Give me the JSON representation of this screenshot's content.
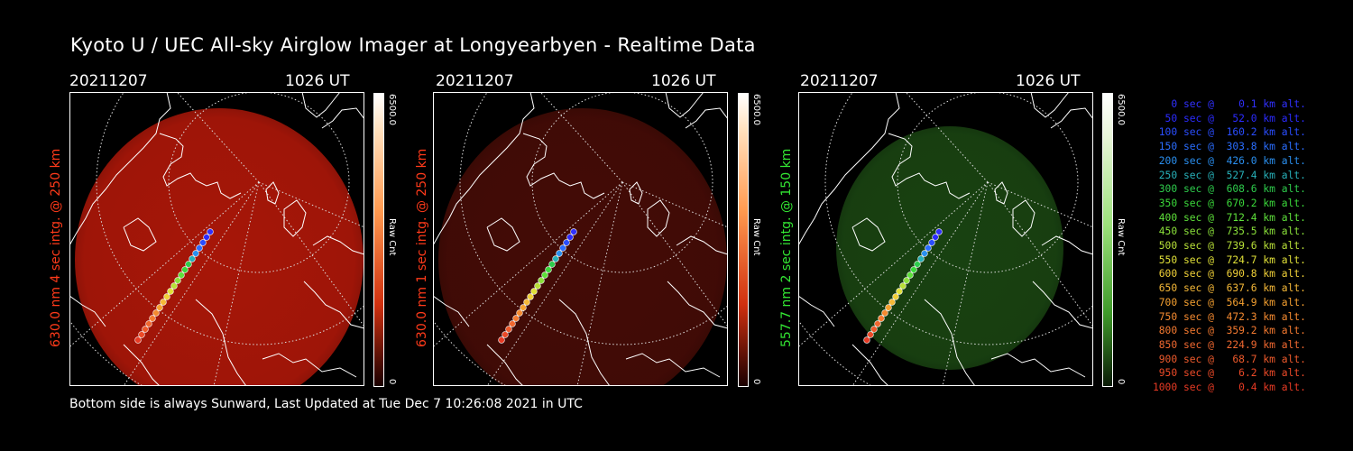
{
  "title": "Kyoto U / UEC All-sky Airglow Imager at Longyearbyen - Realtime Data",
  "footer": "Bottom side is always Sunward, Last Updated at Tue Dec  7 10:26:08 2021 in UTC",
  "panels": [
    {
      "date": "20211207",
      "time": "1026 UT",
      "label": "630.0 nm 4 sec intg. @ 250 km",
      "label_color": "#ff3a1a",
      "cbar_max": "6500.0",
      "cbar_min": "0",
      "cbar_unit": "Raw Cnt",
      "image_color": "#c41a0a",
      "image_opacity": 0.85,
      "colormap": "red"
    },
    {
      "date": "20211207",
      "time": "1026 UT",
      "label": "630.0 nm 1 sec intg. @ 250 km",
      "label_color": "#ff3a1a",
      "cbar_max": "6500.0",
      "cbar_min": "0",
      "cbar_unit": "Raw Cnt",
      "image_color": "#5a0f08",
      "image_opacity": 0.75,
      "colormap": "red"
    },
    {
      "date": "20211207",
      "time": "1026 UT",
      "label": "557.7 nm 2 sec intg. @ 150 km",
      "label_color": "#33e633",
      "cbar_max": "6500.0",
      "cbar_min": "0",
      "cbar_unit": "Raw Cnt",
      "image_color": "#1d4d14",
      "image_opacity": 0.85,
      "colormap": "green"
    }
  ],
  "trajectory_legend": [
    {
      "text": "   0 sec @    0.1 km alt.",
      "color": "#3030ff"
    },
    {
      "text": "  50 sec @   52.0 km alt.",
      "color": "#2b2bff"
    },
    {
      "text": " 100 sec @  160.2 km alt.",
      "color": "#2a4dff"
    },
    {
      "text": " 150 sec @  303.8 km alt.",
      "color": "#2a6dff"
    },
    {
      "text": " 200 sec @  426.0 km alt.",
      "color": "#2a8fef"
    },
    {
      "text": " 250 sec @  527.4 km alt.",
      "color": "#27b0b8"
    },
    {
      "text": " 300 sec @  608.6 km alt.",
      "color": "#2ecc4c"
    },
    {
      "text": " 350 sec @  670.2 km alt.",
      "color": "#3ad83a"
    },
    {
      "text": " 400 sec @  712.4 km alt.",
      "color": "#5ee03a"
    },
    {
      "text": " 450 sec @  735.5 km alt.",
      "color": "#8ae03a"
    },
    {
      "text": " 500 sec @  739.6 km alt.",
      "color": "#b8e038"
    },
    {
      "text": " 550 sec @  724.7 km alt.",
      "color": "#e0e038"
    },
    {
      "text": " 600 sec @  690.8 km alt.",
      "color": "#f0d038"
    },
    {
      "text": " 650 sec @  637.6 km alt.",
      "color": "#f5b838"
    },
    {
      "text": " 700 sec @  564.9 km alt.",
      "color": "#f5a030"
    },
    {
      "text": " 750 sec @  472.3 km alt.",
      "color": "#f58a30"
    },
    {
      "text": " 800 sec @  359.2 km alt.",
      "color": "#f57a30"
    },
    {
      "text": " 850 sec @  224.9 km alt.",
      "color": "#f06830"
    },
    {
      "text": " 900 sec @   68.7 km alt.",
      "color": "#ee5a2c"
    },
    {
      "text": " 950 sec @    6.2 km alt.",
      "color": "#ec4a28"
    },
    {
      "text": "1000 sec @    0.4 km alt.",
      "color": "#e83a24"
    }
  ]
}
